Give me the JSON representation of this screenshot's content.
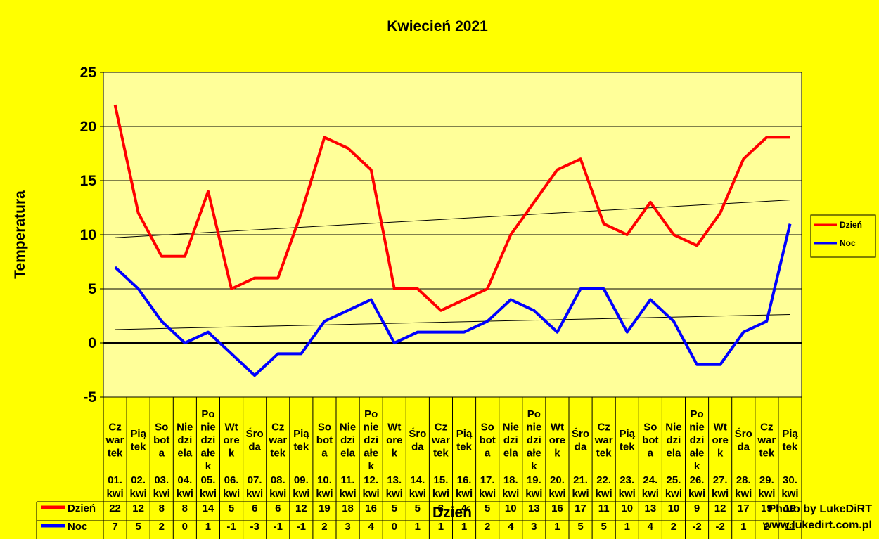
{
  "chart_data": {
    "type": "line",
    "title": "Kwiecień 2021",
    "xlabel": "Dzień",
    "ylabel": "Temperatura",
    "ylim": [
      -5,
      25
    ],
    "y_ticks": [
      -5,
      0,
      5,
      10,
      15,
      20,
      25
    ],
    "grid": true,
    "legend_position": "right",
    "trendlines": true,
    "categories": [
      {
        "day": [
          "Cz",
          "war",
          "tek"
        ],
        "date": [
          "01.",
          "kwi"
        ]
      },
      {
        "day": [
          "Pią",
          "tek"
        ],
        "date": [
          "02.",
          "kwi"
        ]
      },
      {
        "day": [
          "So",
          "bot",
          "a"
        ],
        "date": [
          "03.",
          "kwi"
        ]
      },
      {
        "day": [
          "Nie",
          "dzi",
          "ela"
        ],
        "date": [
          "04.",
          "kwi"
        ]
      },
      {
        "day": [
          "Po",
          "nie",
          "dzi",
          "ałe",
          "k"
        ],
        "date": [
          "05.",
          "kwi"
        ]
      },
      {
        "day": [
          "Wt",
          "ore",
          "k"
        ],
        "date": [
          "06.",
          "kwi"
        ]
      },
      {
        "day": [
          "Śro",
          "da"
        ],
        "date": [
          "07.",
          "kwi"
        ]
      },
      {
        "day": [
          "Cz",
          "war",
          "tek"
        ],
        "date": [
          "08.",
          "kwi"
        ]
      },
      {
        "day": [
          "Pią",
          "tek"
        ],
        "date": [
          "09.",
          "kwi"
        ]
      },
      {
        "day": [
          "So",
          "bot",
          "a"
        ],
        "date": [
          "10.",
          "kwi"
        ]
      },
      {
        "day": [
          "Nie",
          "dzi",
          "ela"
        ],
        "date": [
          "11.",
          "kwi"
        ]
      },
      {
        "day": [
          "Po",
          "nie",
          "dzi",
          "ałe",
          "k"
        ],
        "date": [
          "12.",
          "kwi"
        ]
      },
      {
        "day": [
          "Wt",
          "ore",
          "k"
        ],
        "date": [
          "13.",
          "kwi"
        ]
      },
      {
        "day": [
          "Śro",
          "da"
        ],
        "date": [
          "14.",
          "kwi"
        ]
      },
      {
        "day": [
          "Cz",
          "war",
          "tek"
        ],
        "date": [
          "15.",
          "kwi"
        ]
      },
      {
        "day": [
          "Pią",
          "tek"
        ],
        "date": [
          "16.",
          "kwi"
        ]
      },
      {
        "day": [
          "So",
          "bot",
          "a"
        ],
        "date": [
          "17.",
          "kwi"
        ]
      },
      {
        "day": [
          "Nie",
          "dzi",
          "ela"
        ],
        "date": [
          "18.",
          "kwi"
        ]
      },
      {
        "day": [
          "Po",
          "nie",
          "dzi",
          "ałe",
          "k"
        ],
        "date": [
          "19.",
          "kwi"
        ]
      },
      {
        "day": [
          "Wt",
          "ore",
          "k"
        ],
        "date": [
          "20.",
          "kwi"
        ]
      },
      {
        "day": [
          "Śro",
          "da"
        ],
        "date": [
          "21.",
          "kwi"
        ]
      },
      {
        "day": [
          "Cz",
          "war",
          "tek"
        ],
        "date": [
          "22.",
          "kwi"
        ]
      },
      {
        "day": [
          "Pią",
          "tek"
        ],
        "date": [
          "23.",
          "kwi"
        ]
      },
      {
        "day": [
          "So",
          "bot",
          "a"
        ],
        "date": [
          "24.",
          "kwi"
        ]
      },
      {
        "day": [
          "Nie",
          "dzi",
          "ela"
        ],
        "date": [
          "25.",
          "kwi"
        ]
      },
      {
        "day": [
          "Po",
          "nie",
          "dzi",
          "ałe",
          "k"
        ],
        "date": [
          "26.",
          "kwi"
        ]
      },
      {
        "day": [
          "Wt",
          "ore",
          "k"
        ],
        "date": [
          "27.",
          "kwi"
        ]
      },
      {
        "day": [
          "Śro",
          "da"
        ],
        "date": [
          "28.",
          "kwi"
        ]
      },
      {
        "day": [
          "Cz",
          "war",
          "tek"
        ],
        "date": [
          "29.",
          "kwi"
        ]
      },
      {
        "day": [
          "Pią",
          "tek"
        ],
        "date": [
          "30.",
          "kwi"
        ]
      }
    ],
    "series": [
      {
        "name": "Dzień",
        "color": "#ff0000",
        "values": [
          22,
          12,
          8,
          8,
          14,
          5,
          6,
          6,
          12,
          19,
          18,
          16,
          5,
          5,
          3,
          4,
          5,
          10,
          13,
          16,
          17,
          11,
          10,
          13,
          10,
          9,
          12,
          17,
          19,
          19
        ]
      },
      {
        "name": "Noc",
        "color": "#0000ff",
        "values": [
          7,
          5,
          2,
          0,
          1,
          -1,
          -3,
          -1,
          -1,
          2,
          3,
          4,
          0,
          1,
          1,
          1,
          2,
          4,
          3,
          1,
          5,
          5,
          1,
          4,
          2,
          -2,
          -2,
          1,
          2,
          11
        ]
      }
    ]
  },
  "watermark": {
    "line1": "Photo by LukeDiRT",
    "line2": "www.lukedirt.com.pl"
  },
  "colors": {
    "background": "#ffff00",
    "plot_area": "#ffff99",
    "trendline": "#000000"
  }
}
